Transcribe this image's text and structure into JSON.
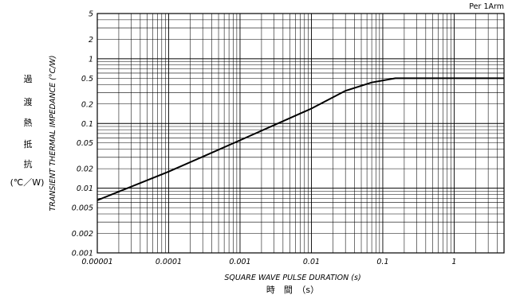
{
  "chart_data": {
    "type": "line",
    "title": "Per 1Arm",
    "xlabel": "SQUARE WAVE PULSE DURATION (s)",
    "xlabel_jp": "時　間　（s）",
    "ylabel": "TRANSIENT THERMAL IMPEDANCE (°C/W)",
    "ylabel_jp_chars": [
      "過",
      "渡",
      "熱",
      "抵",
      "抗"
    ],
    "ylabel_jp_unit": "(℃／W)",
    "x_scale": "log",
    "y_scale": "log",
    "xlim": [
      1e-05,
      5
    ],
    "ylim": [
      0.001,
      5
    ],
    "grid": true,
    "x_ticks": [
      {
        "v": 1e-05,
        "label": "0.00001"
      },
      {
        "v": 0.0001,
        "label": "0.0001"
      },
      {
        "v": 0.001,
        "label": "0.001"
      },
      {
        "v": 0.01,
        "label": "0.01"
      },
      {
        "v": 0.1,
        "label": "0.1"
      },
      {
        "v": 1,
        "label": "1"
      }
    ],
    "y_ticks": [
      {
        "v": 0.001,
        "label": "0.001"
      },
      {
        "v": 0.002,
        "label": "0.002"
      },
      {
        "v": 0.005,
        "label": "0.005"
      },
      {
        "v": 0.01,
        "label": "0.01"
      },
      {
        "v": 0.02,
        "label": "0.02"
      },
      {
        "v": 0.05,
        "label": "0.05"
      },
      {
        "v": 0.1,
        "label": "0.1"
      },
      {
        "v": 0.2,
        "label": "0.2"
      },
      {
        "v": 0.5,
        "label": "0.5"
      },
      {
        "v": 1,
        "label": "1"
      },
      {
        "v": 2,
        "label": "2"
      },
      {
        "v": 5,
        "label": "5"
      }
    ],
    "series": [
      {
        "x": [
          1e-05,
          0.0001,
          0.001,
          0.01,
          0.03,
          0.07,
          0.15,
          0.3,
          1,
          5
        ],
        "y": [
          0.0065,
          0.018,
          0.055,
          0.17,
          0.32,
          0.43,
          0.5,
          0.5,
          0.5,
          0.5
        ]
      }
    ]
  }
}
